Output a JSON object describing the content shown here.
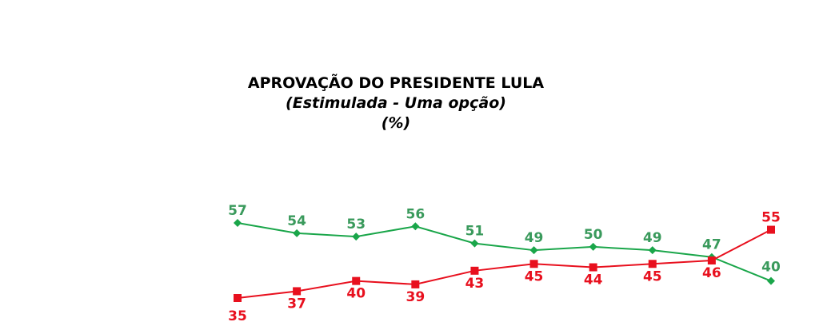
{
  "chart_data": {
    "type": "line",
    "title": "APROVAÇÃO DO PRESIDENTE LULA",
    "subtitle": "(Estimulada - Uma opção)",
    "unit": "(%)",
    "x": [
      1,
      2,
      3,
      4,
      5,
      6,
      7,
      8,
      9,
      10
    ],
    "ylim": [
      30,
      60
    ],
    "grid": false,
    "legend": "none",
    "series": [
      {
        "color": "#1aa64a",
        "marker": "diamond",
        "label_color": "#3a9a5c",
        "values": [
          57,
          54,
          53,
          56,
          51,
          49,
          50,
          49,
          47,
          40
        ]
      },
      {
        "color": "#e8101e",
        "marker": "square",
        "label_color": "#e8101e",
        "values": [
          35,
          37,
          40,
          39,
          43,
          45,
          44,
          45,
          46,
          55
        ]
      }
    ]
  }
}
